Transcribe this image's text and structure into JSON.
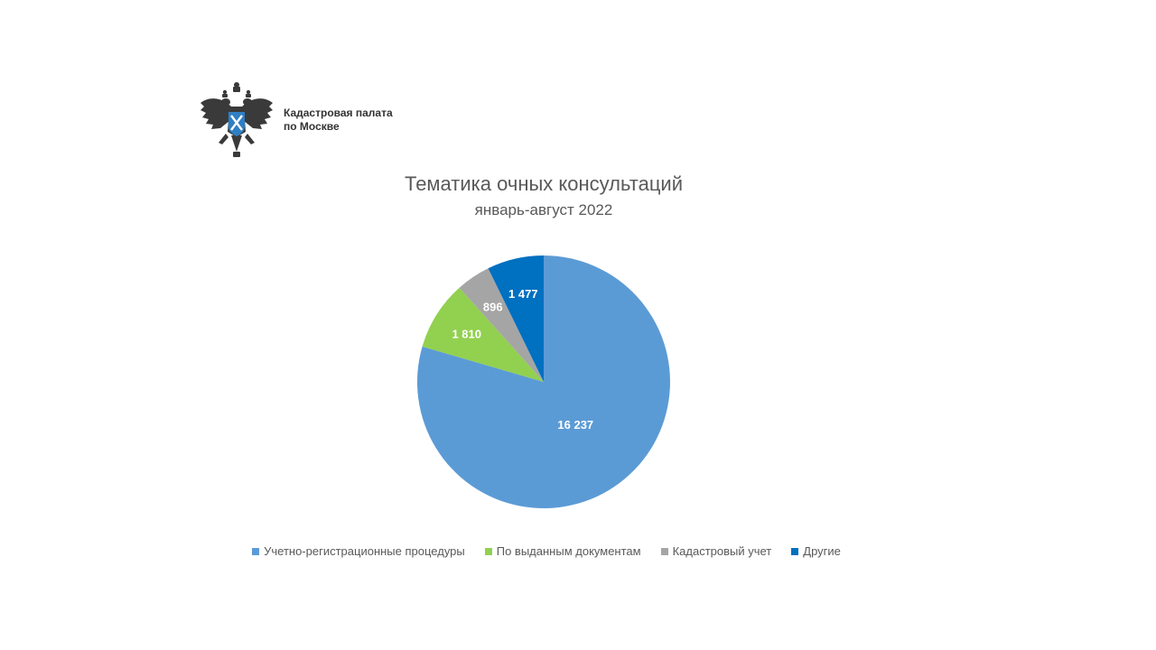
{
  "header": {
    "org_line1": "Кадастровая палата",
    "org_line2": "по Москве"
  },
  "colors": {
    "emblem": "#3a3a3a",
    "shield": "#2e7fc4"
  },
  "chart_data": {
    "type": "pie",
    "title": "Тематика очных консультаций",
    "subtitle": "январь-август 2022",
    "start_angle_deg": 0,
    "direction": "clockwise",
    "legend_position": "bottom",
    "slices": [
      {
        "name": "Учетно-регистрационные процедуры",
        "value": 16237,
        "label": "16 237",
        "color": "#5b9bd5"
      },
      {
        "name": "По выданным документам",
        "value": 1810,
        "label": "1 810",
        "color": "#92d050"
      },
      {
        "name": "Кадастровый учет",
        "value": 896,
        "label": "896",
        "color": "#a5a5a5"
      },
      {
        "name": "Другие",
        "value": 1477,
        "label": "1 477",
        "color": "#0070c0"
      }
    ]
  }
}
